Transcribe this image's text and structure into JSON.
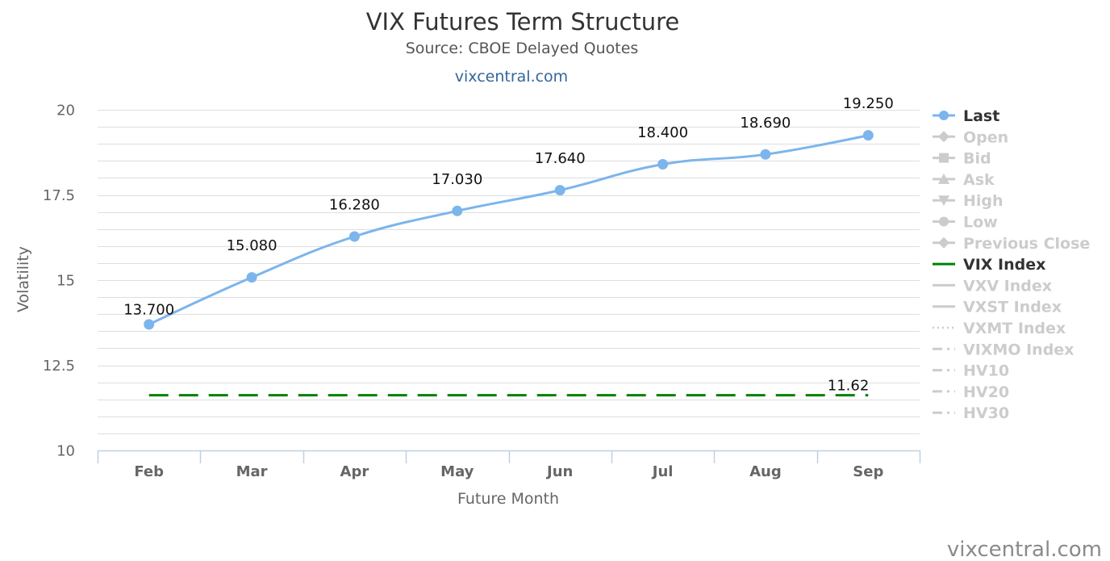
{
  "chart_data": {
    "type": "line",
    "title": "VIX Futures Term Structure",
    "subtitle": "Source: CBOE Delayed Quotes",
    "credit_link": "vixcentral.com",
    "xlabel": "Future Month",
    "ylabel": "Volatility",
    "categories": [
      "Feb",
      "Mar",
      "Apr",
      "May",
      "Jun",
      "Jul",
      "Aug",
      "Sep"
    ],
    "ylim": [
      10,
      20
    ],
    "y_ticks": [
      10,
      12.5,
      15,
      17.5,
      20
    ],
    "y_tick_labels": [
      "10",
      "12.5",
      "15",
      "17.5",
      "20"
    ],
    "grid": true,
    "legend_position": "right",
    "hidden_color": "#cccccc",
    "series": [
      {
        "name": "Last",
        "visible": true,
        "color": "#7cb5ec",
        "line": "spline",
        "dash": "solid",
        "symbol": "circle",
        "values": [
          13.7,
          15.08,
          16.28,
          17.03,
          17.64,
          18.4,
          18.69,
          19.25
        ],
        "data_labels": [
          "13.700",
          "15.080",
          "16.280",
          "17.030",
          "17.640",
          "18.400",
          "18.690",
          "19.250"
        ]
      },
      {
        "name": "Open",
        "visible": false,
        "dash": "solid",
        "symbol": "diamond"
      },
      {
        "name": "Bid",
        "visible": false,
        "dash": "solid",
        "symbol": "square"
      },
      {
        "name": "Ask",
        "visible": false,
        "dash": "solid",
        "symbol": "triangle"
      },
      {
        "name": "High",
        "visible": false,
        "dash": "solid",
        "symbol": "triangle-down"
      },
      {
        "name": "Low",
        "visible": false,
        "dash": "solid",
        "symbol": "circle"
      },
      {
        "name": "Previous Close",
        "visible": false,
        "dash": "solid",
        "symbol": "diamond"
      },
      {
        "name": "VIX Index",
        "visible": true,
        "color": "#008000",
        "line": "straight",
        "dash": "dashed",
        "symbol": "none",
        "values": [
          11.62,
          11.62,
          11.62,
          11.62,
          11.62,
          11.62,
          11.62,
          11.62
        ],
        "data_labels": [
          null,
          null,
          null,
          null,
          null,
          null,
          null,
          "11.62"
        ]
      },
      {
        "name": "VXV Index",
        "visible": false,
        "dash": "solid",
        "symbol": "none"
      },
      {
        "name": "VXST Index",
        "visible": false,
        "dash": "solid",
        "symbol": "none"
      },
      {
        "name": "VXMT Index",
        "visible": false,
        "dash": "dotted",
        "symbol": "none"
      },
      {
        "name": "VIXMO Index",
        "visible": false,
        "dash": "dashdot",
        "symbol": "none"
      },
      {
        "name": "HV10",
        "visible": false,
        "dash": "dashdot",
        "symbol": "none"
      },
      {
        "name": "HV20",
        "visible": false,
        "dash": "dashdot",
        "symbol": "none"
      },
      {
        "name": "HV30",
        "visible": false,
        "dash": "dashdot",
        "symbol": "none"
      }
    ]
  },
  "watermark": "vixcentral.com"
}
